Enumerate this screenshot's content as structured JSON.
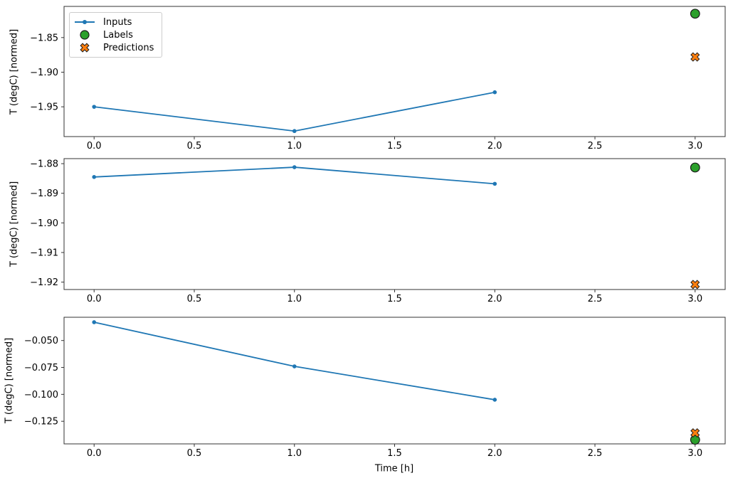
{
  "figure": {
    "xlabel": "Time [h]",
    "ylabel": "T (degC) [normed]"
  },
  "legend": {
    "position": "upper-left",
    "items": [
      {
        "label": "Inputs",
        "marker": "line-dot",
        "color": "#1f77b4"
      },
      {
        "label": "Labels",
        "marker": "circle",
        "color": "#2ca02c"
      },
      {
        "label": "Predictions",
        "marker": "X",
        "color": "#ff7f0e"
      }
    ]
  },
  "chart_data": [
    {
      "type": "line",
      "title": "",
      "xlabel": "",
      "ylabel": "T (degC) [normed]",
      "xlim": [
        -0.15,
        3.15
      ],
      "ylim": [
        -1.993,
        -1.805
      ],
      "grid": false,
      "xticks": [
        0.0,
        0.5,
        1.0,
        1.5,
        2.0,
        2.5,
        3.0
      ],
      "xtick_labels": [
        "0.0",
        "0.5",
        "1.0",
        "1.5",
        "2.0",
        "2.5",
        "3.0"
      ],
      "yticks": [
        -1.85,
        -1.9,
        -1.95
      ],
      "ytick_labels": [
        "−1.85",
        "−1.90",
        "−1.95"
      ],
      "series": [
        {
          "name": "Inputs",
          "kind": "line",
          "marker": "dot",
          "color": "#1f77b4",
          "x": [
            0,
            1,
            2
          ],
          "y": [
            -1.95,
            -1.985,
            -1.929
          ]
        },
        {
          "name": "Labels",
          "kind": "scatter",
          "marker": "circle",
          "color": "#2ca02c",
          "x": [
            3
          ],
          "y": [
            -1.8155
          ]
        },
        {
          "name": "Predictions",
          "kind": "scatter",
          "marker": "X",
          "color": "#ff7f0e",
          "x": [
            3
          ],
          "y": [
            -1.878
          ]
        }
      ]
    },
    {
      "type": "line",
      "title": "",
      "xlabel": "",
      "ylabel": "T (degC) [normed]",
      "xlim": [
        -0.15,
        3.15
      ],
      "ylim": [
        -1.9225,
        -1.8783
      ],
      "grid": false,
      "xticks": [
        0.0,
        0.5,
        1.0,
        1.5,
        2.0,
        2.5,
        3.0
      ],
      "xtick_labels": [
        "0.0",
        "0.5",
        "1.0",
        "1.5",
        "2.0",
        "2.5",
        "3.0"
      ],
      "yticks": [
        -1.88,
        -1.89,
        -1.9,
        -1.91,
        -1.92
      ],
      "ytick_labels": [
        "−1.88",
        "−1.89",
        "−1.90",
        "−1.91",
        "−1.92"
      ],
      "series": [
        {
          "name": "Inputs",
          "kind": "line",
          "marker": "dot",
          "color": "#1f77b4",
          "x": [
            0,
            1,
            2
          ],
          "y": [
            -1.8845,
            -1.8812,
            -1.8868
          ]
        },
        {
          "name": "Labels",
          "kind": "scatter",
          "marker": "circle",
          "color": "#2ca02c",
          "x": [
            3
          ],
          "y": [
            -1.8813
          ]
        },
        {
          "name": "Predictions",
          "kind": "scatter",
          "marker": "X",
          "color": "#ff7f0e",
          "x": [
            3
          ],
          "y": [
            -1.9208
          ]
        }
      ]
    },
    {
      "type": "line",
      "title": "",
      "xlabel": "Time [h]",
      "ylabel": "T (degC) [normed]",
      "xlim": [
        -0.15,
        3.15
      ],
      "ylim": [
        -0.146,
        -0.0284
      ],
      "grid": false,
      "xticks": [
        0.0,
        0.5,
        1.0,
        1.5,
        2.0,
        2.5,
        3.0
      ],
      "xtick_labels": [
        "0.0",
        "0.5",
        "1.0",
        "1.5",
        "2.0",
        "2.5",
        "3.0"
      ],
      "yticks": [
        -0.05,
        -0.075,
        -0.1,
        -0.125
      ],
      "ytick_labels": [
        "−0.050",
        "−0.075",
        "−0.100",
        "−0.125"
      ],
      "series": [
        {
          "name": "Inputs",
          "kind": "line",
          "marker": "dot",
          "color": "#1f77b4",
          "x": [
            0,
            1,
            2
          ],
          "y": [
            -0.033,
            -0.074,
            -0.105
          ]
        },
        {
          "name": "Labels",
          "kind": "scatter",
          "marker": "circle",
          "color": "#2ca02c",
          "x": [
            3
          ],
          "y": [
            -0.1422
          ]
        },
        {
          "name": "Predictions",
          "kind": "scatter",
          "marker": "X",
          "color": "#ff7f0e",
          "x": [
            3
          ],
          "y": [
            -0.1358
          ]
        }
      ]
    }
  ]
}
